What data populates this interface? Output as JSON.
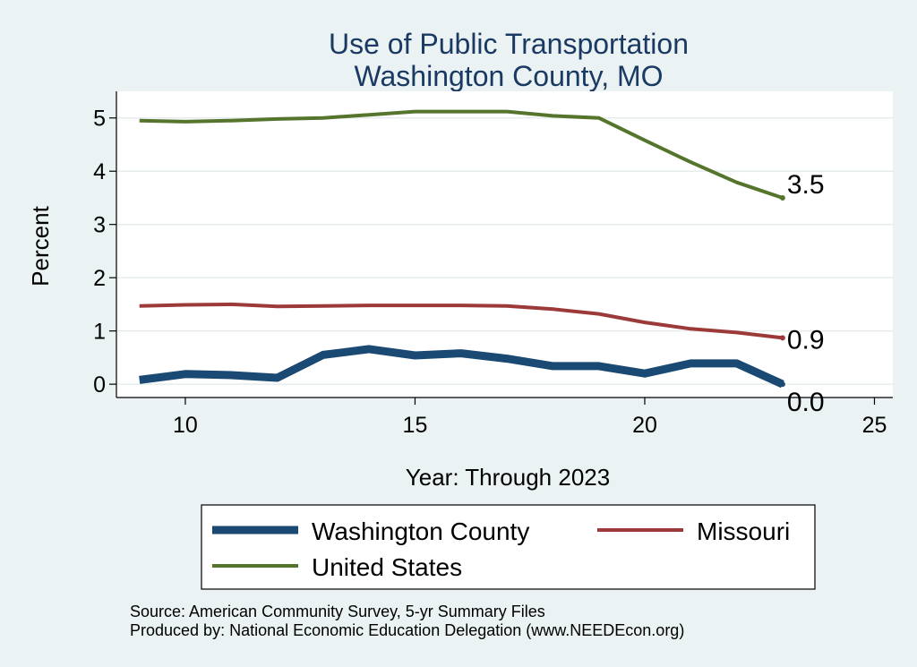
{
  "chart_data": {
    "type": "line",
    "title": [
      "Use of Public Transportation",
      "Washington County, MO"
    ],
    "xlabel": "Year: Through 2023",
    "ylabel": "Percent",
    "xlim": [
      8.5,
      25.4
    ],
    "ylim": [
      -0.25,
      5.5
    ],
    "xticks": [
      10,
      15,
      20,
      25
    ],
    "yticks": [
      0,
      1,
      2,
      3,
      4,
      5
    ],
    "grid": true,
    "legend": "bottom",
    "x": [
      9,
      10,
      11,
      12,
      13,
      14,
      15,
      16,
      17,
      18,
      19,
      20,
      21,
      22,
      23
    ],
    "series": [
      {
        "name": "Washington County",
        "color": "#1a4a73",
        "values": [
          0.08,
          0.19,
          0.17,
          0.12,
          0.55,
          0.66,
          0.54,
          0.58,
          0.48,
          0.34,
          0.34,
          0.2,
          0.39,
          0.39,
          0.0
        ],
        "end_label": "0.0"
      },
      {
        "name": "Missouri",
        "color": "#9c3a3a",
        "values": [
          1.47,
          1.49,
          1.5,
          1.46,
          1.47,
          1.48,
          1.48,
          1.48,
          1.47,
          1.41,
          1.32,
          1.16,
          1.04,
          0.97,
          0.87
        ],
        "end_label": "0.9"
      },
      {
        "name": "United States",
        "color": "#55752d",
        "values": [
          4.95,
          4.93,
          4.95,
          4.98,
          5.0,
          5.06,
          5.12,
          5.12,
          5.12,
          5.04,
          5.0,
          4.58,
          4.17,
          3.79,
          3.5
        ],
        "end_label": "3.5"
      }
    ]
  },
  "notes": {
    "source": "Source: American Community Survey, 5-yr Summary Files",
    "producer": "Produced by: National Economic Education Delegation (www.NEEDEcon.org)"
  }
}
